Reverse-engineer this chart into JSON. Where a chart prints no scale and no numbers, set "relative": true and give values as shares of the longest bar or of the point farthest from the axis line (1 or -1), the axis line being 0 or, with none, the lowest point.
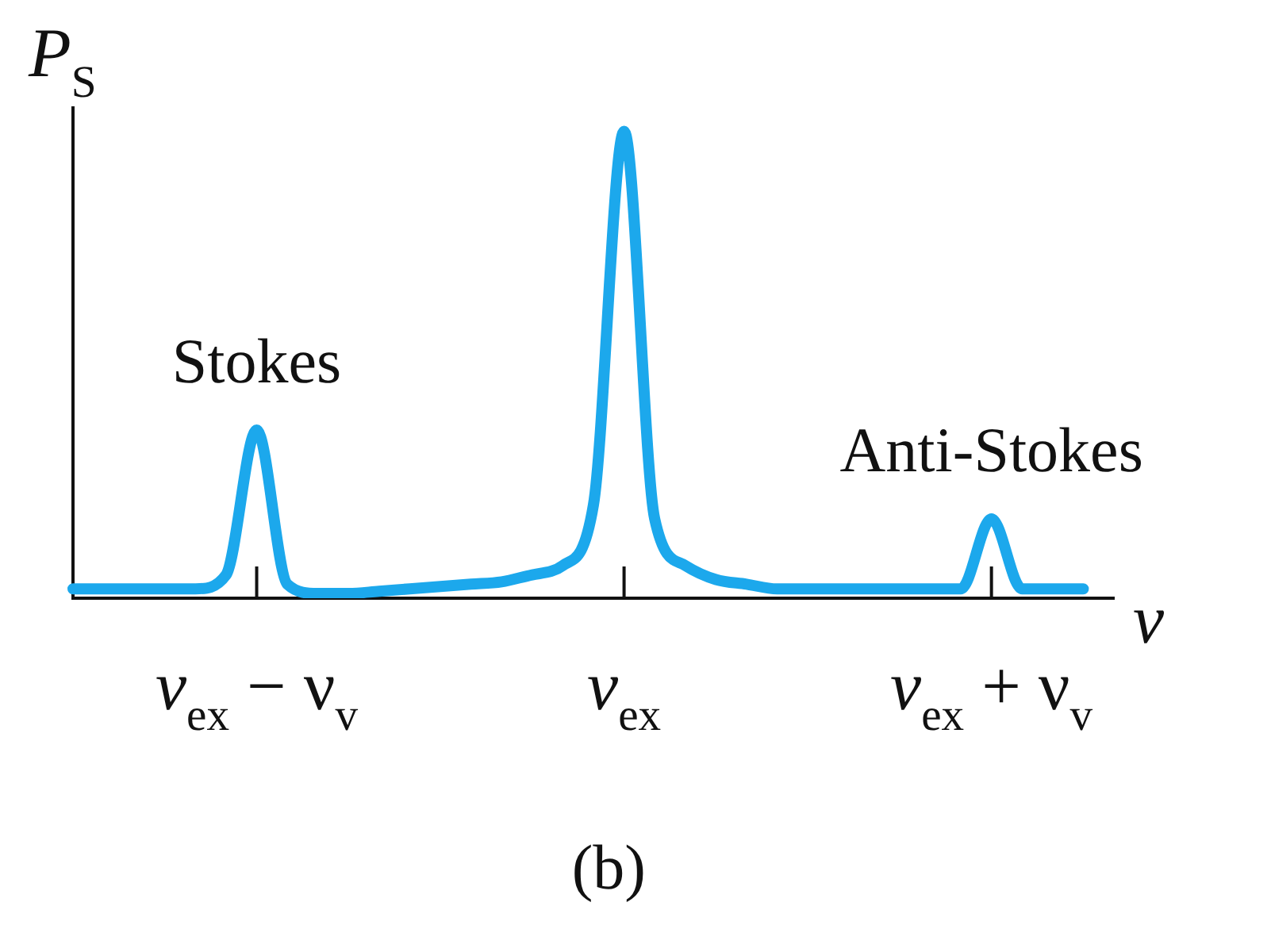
{
  "chart_data": {
    "type": "line",
    "relative": true,
    "title": "(b)",
    "ylabel": "P$_{S}$",
    "xlabel": "ν",
    "categories": [
      null,
      null,
      null,
      null,
      null,
      null,
      "ν$_{ex}$ − ν$_{v}$",
      null,
      null,
      null,
      null,
      null,
      null,
      null,
      null,
      null,
      null,
      null,
      "ν$_{ex}$",
      null,
      null,
      null,
      null,
      null,
      null,
      null,
      null,
      null,
      null,
      null,
      "ν$_{ex}$ + ν$_{v}$",
      null,
      null,
      null,
      null
    ],
    "grid": false,
    "legend": false,
    "marker": "none",
    "line_style": "solid",
    "annotations": [
      {
        "text": "Stokes",
        "x": "ν$_{ex}$ − ν$_{v}$",
        "y": 0.36
      },
      {
        "text": "Anti-Stokes",
        "x": "ν$_{ex}$ + ν$_{v}$",
        "y": 0.17
      }
    ],
    "series": [
      {
        "color": "#1ca8ec",
        "values": [
          0.02,
          0.02,
          0.02,
          0.02,
          0.02,
          0.05,
          0.36,
          0.03,
          0.01,
          0.01,
          0.015,
          0.02,
          0.025,
          0.03,
          0.035,
          0.05,
          0.07,
          0.2,
          1,
          0.17,
          0.07,
          0.04,
          0.03,
          0.02,
          0.02,
          0.02,
          0.02,
          0.02,
          0.02,
          0.02,
          0.17,
          0.02,
          0.02,
          0.02,
          null
        ]
      }
    ]
  }
}
